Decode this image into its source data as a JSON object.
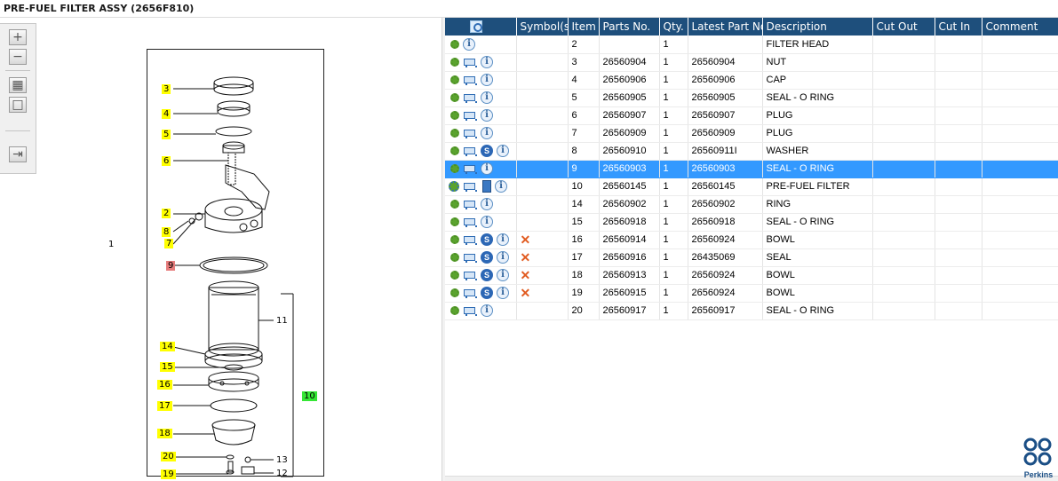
{
  "window": {
    "title": "PRE-FUEL FILTER ASSY (2656F810)"
  },
  "toolbox": {
    "buttons": [
      {
        "name": "zoom-in",
        "icon": "zoom-in-icon",
        "glyph": "+"
      },
      {
        "name": "zoom-out",
        "icon": "zoom-out-icon",
        "glyph": "−"
      },
      {
        "name": "fit-all",
        "icon": "fit-all-icon",
        "glyph": "▦"
      },
      {
        "name": "fit-window",
        "icon": "fit-window-icon",
        "glyph": "□"
      },
      {
        "name": "sync",
        "icon": "sync-list-icon",
        "glyph": "⇥"
      }
    ]
  },
  "diagram": {
    "callouts": [
      {
        "label": "3",
        "style": "yellow"
      },
      {
        "label": "4",
        "style": "yellow"
      },
      {
        "label": "5",
        "style": "yellow"
      },
      {
        "label": "6",
        "style": "yellow"
      },
      {
        "label": "2",
        "style": "yellow"
      },
      {
        "label": "8",
        "style": "yellow"
      },
      {
        "label": "7",
        "style": "yellow"
      },
      {
        "label": "9",
        "style": "red"
      },
      {
        "label": "14",
        "style": "yellow"
      },
      {
        "label": "15",
        "style": "yellow"
      },
      {
        "label": "16",
        "style": "yellow"
      },
      {
        "label": "17",
        "style": "yellow"
      },
      {
        "label": "18",
        "style": "yellow"
      },
      {
        "label": "20",
        "style": "yellow"
      },
      {
        "label": "19",
        "style": "yellow"
      },
      {
        "label": "11",
        "style": "plain"
      },
      {
        "label": "10",
        "style": "green"
      },
      {
        "label": "13",
        "style": "plain"
      },
      {
        "label": "12",
        "style": "plain"
      },
      {
        "label": "1",
        "style": "plain"
      }
    ]
  },
  "table": {
    "columns": [
      "",
      "Symbol(s)",
      "Item",
      "Parts No.",
      "Qty.",
      "Latest Part No.",
      "Description",
      "Cut Out",
      "Cut In",
      "Comment"
    ],
    "rows": [
      {
        "icons": [
          "gear",
          "info"
        ],
        "symbol": "",
        "item": "2",
        "part": "",
        "qty": "1",
        "latest": "",
        "desc": "FILTER HEAD",
        "cut_out": "",
        "cut_in": "",
        "comment": ""
      },
      {
        "icons": [
          "gear",
          "cart",
          "info"
        ],
        "symbol": "",
        "item": "3",
        "part": "26560904",
        "qty": "1",
        "latest": "26560904",
        "desc": "NUT",
        "cut_out": "",
        "cut_in": "",
        "comment": ""
      },
      {
        "icons": [
          "gear",
          "cart",
          "info"
        ],
        "symbol": "",
        "item": "4",
        "part": "26560906",
        "qty": "1",
        "latest": "26560906",
        "desc": "CAP",
        "cut_out": "",
        "cut_in": "",
        "comment": ""
      },
      {
        "icons": [
          "gear",
          "cart",
          "info"
        ],
        "symbol": "",
        "item": "5",
        "part": "26560905",
        "qty": "1",
        "latest": "26560905",
        "desc": "SEAL - O RING",
        "cut_out": "",
        "cut_in": "",
        "comment": ""
      },
      {
        "icons": [
          "gear",
          "cart",
          "info"
        ],
        "symbol": "",
        "item": "6",
        "part": "26560907",
        "qty": "1",
        "latest": "26560907",
        "desc": "PLUG",
        "cut_out": "",
        "cut_in": "",
        "comment": ""
      },
      {
        "icons": [
          "gear",
          "cart",
          "info"
        ],
        "symbol": "",
        "item": "7",
        "part": "26560909",
        "qty": "1",
        "latest": "26560909",
        "desc": "PLUG",
        "cut_out": "",
        "cut_in": "",
        "comment": ""
      },
      {
        "icons": [
          "gear",
          "cart",
          "s",
          "info"
        ],
        "symbol": "",
        "item": "8",
        "part": "26560910",
        "qty": "1",
        "latest": "26560911I",
        "desc": "WASHER",
        "cut_out": "",
        "cut_in": "",
        "comment": ""
      },
      {
        "icons": [
          "gear",
          "cart",
          "info"
        ],
        "symbol": "",
        "item": "9",
        "part": "26560903",
        "qty": "1",
        "latest": "26560903",
        "desc": "SEAL - O RING",
        "cut_out": "",
        "cut_in": "",
        "comment": "",
        "selected": true
      },
      {
        "icons": [
          "gearblue",
          "cart",
          "book",
          "info"
        ],
        "symbol": "",
        "item": "10",
        "part": "26560145",
        "qty": "1",
        "latest": "26560145",
        "desc": "PRE-FUEL FILTER",
        "cut_out": "",
        "cut_in": "",
        "comment": ""
      },
      {
        "icons": [
          "gear",
          "cart",
          "info"
        ],
        "symbol": "",
        "item": "14",
        "part": "26560902",
        "qty": "1",
        "latest": "26560902",
        "desc": "RING",
        "cut_out": "",
        "cut_in": "",
        "comment": ""
      },
      {
        "icons": [
          "gear",
          "cart",
          "info"
        ],
        "symbol": "",
        "item": "15",
        "part": "26560918",
        "qty": "1",
        "latest": "26560918",
        "desc": "SEAL - O RING",
        "cut_out": "",
        "cut_in": "",
        "comment": ""
      },
      {
        "icons": [
          "gear",
          "cart",
          "s",
          "info"
        ],
        "symbol": "x",
        "item": "16",
        "part": "26560914",
        "qty": "1",
        "latest": "26560924",
        "desc": "BOWL",
        "cut_out": "",
        "cut_in": "",
        "comment": ""
      },
      {
        "icons": [
          "gear",
          "cart",
          "s",
          "info"
        ],
        "symbol": "x",
        "item": "17",
        "part": "26560916",
        "qty": "1",
        "latest": "26435069",
        "desc": "SEAL",
        "cut_out": "",
        "cut_in": "",
        "comment": ""
      },
      {
        "icons": [
          "gear",
          "cart",
          "s",
          "info"
        ],
        "symbol": "x",
        "item": "18",
        "part": "26560913",
        "qty": "1",
        "latest": "26560924",
        "desc": "BOWL",
        "cut_out": "",
        "cut_in": "",
        "comment": ""
      },
      {
        "icons": [
          "gear",
          "cart",
          "s",
          "info"
        ],
        "symbol": "x",
        "item": "19",
        "part": "26560915",
        "qty": "1",
        "latest": "26560924",
        "desc": "BOWL",
        "cut_out": "",
        "cut_in": "",
        "comment": ""
      },
      {
        "icons": [
          "gear",
          "cart",
          "info"
        ],
        "symbol": "",
        "item": "20",
        "part": "26560917",
        "qty": "1",
        "latest": "26560917",
        "desc": "SEAL - O RING",
        "cut_out": "",
        "cut_in": "",
        "comment": ""
      }
    ]
  },
  "logo": {
    "text": "Perkins"
  },
  "colors": {
    "header": "#1e4f7c",
    "selected_row": "#3399ff",
    "highlight": "#ffff00",
    "callout_red": "#e67c7c",
    "callout_green": "#35e635"
  }
}
